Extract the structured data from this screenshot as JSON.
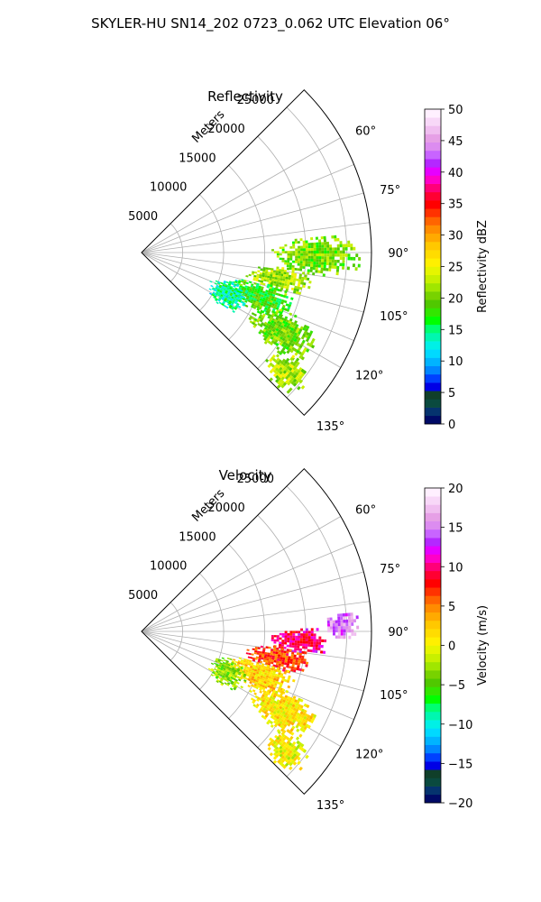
{
  "figure": {
    "suptitle": "SKYLER-HU  SN14_202  0723_0.062 UTC Elevation 06°"
  },
  "chart_data": [
    {
      "type": "heatmap",
      "projection": "polar-sector",
      "title": "Reflectivity",
      "radial_axis_label": "Meters",
      "radial_ticks": [
        "5000",
        "10000",
        "15000",
        "20000",
        "25000"
      ],
      "radial_tick_values": [
        5000,
        10000,
        15000,
        20000,
        25000
      ],
      "rlim": [
        0,
        28000
      ],
      "azimuth_ticks": [
        "60°",
        "75°",
        "90°",
        "105°",
        "120°",
        "135°"
      ],
      "azimuth_tick_values": [
        60,
        75,
        90,
        105,
        120,
        135
      ],
      "azimuth_range": [
        45,
        135
      ],
      "grid": true,
      "colorbar": {
        "label": "Reflectivity dBZ",
        "range": [
          0,
          50
        ],
        "ticks": [
          "0",
          "5",
          "10",
          "15",
          "20",
          "25",
          "30",
          "35",
          "40",
          "45",
          "50"
        ],
        "colors": [
          "#000a66",
          "#05336e",
          "#0a4a3f",
          "#103f2a",
          "#0000e6",
          "#0041ff",
          "#0086ff",
          "#00b4ff",
          "#00d9ff",
          "#00f0e6",
          "#00f7b0",
          "#00ff70",
          "#00ff00",
          "#33e600",
          "#50c800",
          "#78d200",
          "#a0e600",
          "#c8f000",
          "#e6f500",
          "#fff000",
          "#ffdc00",
          "#ffc800",
          "#ffaa00",
          "#ff8c00",
          "#ff6400",
          "#ff3200",
          "#ff0000",
          "#ff0032",
          "#ff0078",
          "#ff00c8",
          "#e600ff",
          "#b428ff",
          "#c864ff",
          "#dc8cf0",
          "#e6a0e6",
          "#f0bef0",
          "#f8d8f8",
          "#fff0ff"
        ]
      },
      "echo_regions": [
        {
          "az": [
            84,
            97
          ],
          "r": [
            15500,
            26500
          ],
          "value": 20
        },
        {
          "az": [
            95,
            106
          ],
          "r": [
            13000,
            21000
          ],
          "value": 22
        },
        {
          "az": [
            103,
            117
          ],
          "r": [
            11000,
            19500
          ],
          "value": 18
        },
        {
          "az": [
            112,
            126
          ],
          "r": [
            15000,
            24000
          ],
          "value": 20
        },
        {
          "az": [
            124,
            134
          ],
          "r": [
            20000,
            25500
          ],
          "value": 22
        },
        {
          "az": [
            106,
            124
          ],
          "r": [
            9000,
            14000
          ],
          "value": 14
        }
      ]
    },
    {
      "type": "heatmap",
      "projection": "polar-sector",
      "title": "Velocity",
      "radial_axis_label": "Meters",
      "radial_ticks": [
        "5000",
        "10000",
        "15000",
        "20000",
        "25000"
      ],
      "radial_tick_values": [
        5000,
        10000,
        15000,
        20000,
        25000
      ],
      "rlim": [
        0,
        28000
      ],
      "azimuth_ticks": [
        "60°",
        "75°",
        "90°",
        "105°",
        "120°",
        "135°"
      ],
      "azimuth_tick_values": [
        60,
        75,
        90,
        105,
        120,
        135
      ],
      "azimuth_range": [
        45,
        135
      ],
      "grid": true,
      "colorbar": {
        "label": "Velocity (m/s)",
        "range": [
          -20,
          20
        ],
        "ticks": [
          "−20",
          "−15",
          "−10",
          "−5",
          "0",
          "5",
          "10",
          "15",
          "20"
        ],
        "colors": [
          "#000a66",
          "#05336e",
          "#0a4a3f",
          "#103f2a",
          "#0000e6",
          "#0041ff",
          "#0086ff",
          "#00b4ff",
          "#00d9ff",
          "#00f0e6",
          "#00f7b0",
          "#00ff70",
          "#00ff00",
          "#33e600",
          "#50c800",
          "#78d200",
          "#a0e600",
          "#c8f000",
          "#e6f500",
          "#fff000",
          "#ffdc00",
          "#ffc800",
          "#ffaa00",
          "#ff8c00",
          "#ff6400",
          "#ff3200",
          "#ff0000",
          "#ff0032",
          "#ff0078",
          "#ff00c8",
          "#e600ff",
          "#b428ff",
          "#c864ff",
          "#dc8cf0",
          "#e6a0e6",
          "#f0bef0",
          "#f8d8f8",
          "#fff0ff"
        ]
      },
      "echo_regions": [
        {
          "az": [
            84,
            92
          ],
          "r": [
            22000,
            26500
          ],
          "value": 15
        },
        {
          "az": [
            88,
            98
          ],
          "r": [
            15500,
            23000
          ],
          "value": 10
        },
        {
          "az": [
            95,
            106
          ],
          "r": [
            13000,
            20500
          ],
          "value": 7
        },
        {
          "az": [
            103,
            117
          ],
          "r": [
            11000,
            19500
          ],
          "value": 2
        },
        {
          "az": [
            112,
            126
          ],
          "r": [
            15000,
            24000
          ],
          "value": 1
        },
        {
          "az": [
            124,
            134
          ],
          "r": [
            20000,
            25500
          ],
          "value": 0
        },
        {
          "az": [
            106,
            124
          ],
          "r": [
            9000,
            14000
          ],
          "value": -3
        }
      ]
    }
  ]
}
